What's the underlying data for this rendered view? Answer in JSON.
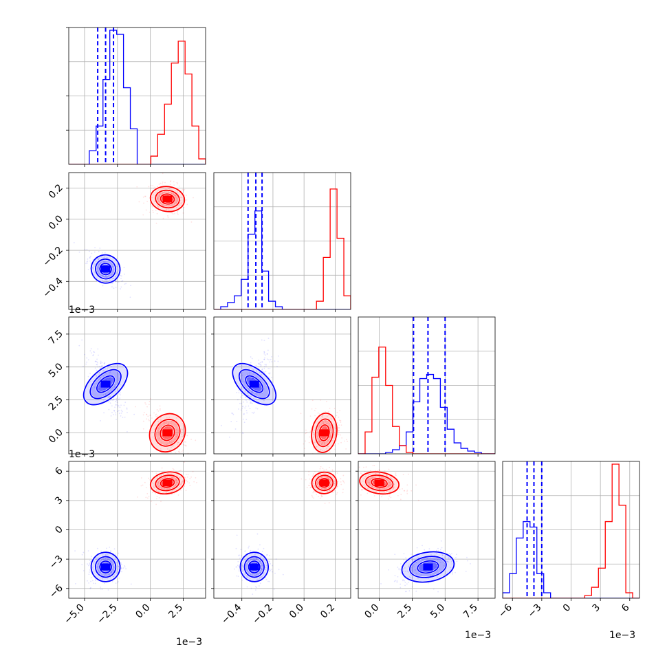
{
  "chart_data": {
    "type": "scatter",
    "subtype": "corner-plot",
    "title": "",
    "grid": true,
    "legend": "none",
    "series_colors": [
      "#0000ff",
      "#ff0000"
    ],
    "quantile_line_color": "#0000ff",
    "variables": [
      {
        "name": "",
        "ticks": [
          "−5.0",
          "−2.5",
          "0.0",
          "2.5"
        ],
        "tick_values": [
          -5.0,
          -2.5,
          0.0,
          2.5
        ],
        "range": [
          -6.2,
          4.2
        ],
        "scale_label": "1e−3"
      },
      {
        "name": "",
        "ticks": [
          "−0.4",
          "−0.2",
          "0.0",
          "0.2"
        ],
        "tick_values": [
          -0.4,
          -0.2,
          0.0,
          0.2
        ],
        "range": [
          -0.58,
          0.3
        ]
      },
      {
        "name": "",
        "ticks": [
          "0.0",
          "2.5",
          "5.0",
          "7.5"
        ],
        "tick_values": [
          0.0,
          2.5,
          5.0,
          7.5
        ],
        "range": [
          -1.6,
          8.8
        ],
        "scale_label": "1e−3"
      },
      {
        "name": "",
        "ticks": [
          "−6",
          "−3",
          "0",
          "3",
          "6"
        ],
        "tick_values": [
          -6,
          -3,
          0,
          3,
          6
        ],
        "range": [
          -7.0,
          7.0
        ],
        "scale_label": "1e−3"
      }
    ],
    "row_scale_labels": [
      "1e−3",
      "1e−3"
    ],
    "series": [
      {
        "name": "",
        "color": "#0000ff",
        "means": [
          -3.4,
          -0.32,
          3.7,
          -3.8
        ],
        "quantiles": [
          [
            -4.0,
            -3.4,
            -2.8
          ],
          [
            -0.36,
            -0.31,
            -0.27
          ],
          [
            2.6,
            3.7,
            5.0
          ],
          [
            -4.5,
            -3.8,
            -3.0
          ]
        ]
      },
      {
        "name": "",
        "color": "#ff0000",
        "means": [
          1.3,
          0.13,
          0.0,
          4.8
        ],
        "quantiles": []
      }
    ],
    "histograms": [
      {
        "blue": {
          "edges": [
            -6.2,
            -5.68,
            -5.16,
            -4.64,
            -4.12,
            -3.6,
            -3.08,
            -2.56,
            -2.04,
            -1.52,
            -1.0,
            -0.48,
            0.04,
            0.56,
            1.08,
            1.6,
            2.12,
            2.64,
            3.16,
            3.68,
            4.2
          ],
          "counts": [
            0,
            0,
            0,
            0.1,
            0.28,
            0.62,
            0.98,
            0.95,
            0.56,
            0.26,
            0,
            0,
            0,
            0,
            0,
            0,
            0,
            0,
            0,
            0
          ]
        },
        "red": {
          "edges": [
            -6.2,
            -5.68,
            -5.16,
            -4.64,
            -4.12,
            -3.6,
            -3.08,
            -2.56,
            -2.04,
            -1.52,
            -1.0,
            -0.48,
            0.04,
            0.56,
            1.08,
            1.6,
            2.12,
            2.64,
            3.16,
            3.68,
            4.2
          ],
          "counts": [
            0,
            0,
            0,
            0,
            0,
            0,
            0,
            0,
            0,
            0,
            0,
            0,
            0.06,
            0.22,
            0.44,
            0.74,
            0.9,
            0.66,
            0.28,
            0.04
          ]
        }
      },
      {
        "blue": {
          "edges": [
            -0.58,
            -0.536,
            -0.492,
            -0.448,
            -0.404,
            -0.36,
            -0.316,
            -0.272,
            -0.228,
            -0.184,
            -0.14,
            -0.096,
            -0.052,
            -0.008,
            0.036,
            0.08,
            0.124,
            0.168,
            0.212,
            0.256,
            0.3
          ],
          "counts": [
            0,
            0.02,
            0.05,
            0.1,
            0.22,
            0.55,
            0.72,
            0.28,
            0.06,
            0.02,
            0,
            0,
            0,
            0,
            0,
            0,
            0,
            0,
            0,
            0
          ]
        },
        "red": {
          "edges": [
            -0.58,
            -0.536,
            -0.492,
            -0.448,
            -0.404,
            -0.36,
            -0.316,
            -0.272,
            -0.228,
            -0.184,
            -0.14,
            -0.096,
            -0.052,
            -0.008,
            0.036,
            0.08,
            0.124,
            0.168,
            0.212,
            0.256,
            0.3
          ],
          "counts": [
            0,
            0,
            0,
            0,
            0,
            0,
            0,
            0,
            0,
            0,
            0,
            0,
            0,
            0,
            0,
            0.06,
            0.38,
            0.88,
            0.52,
            0.1
          ]
        }
      },
      {
        "blue": {
          "edges": [
            -1.6,
            -1.08,
            -0.56,
            -0.04,
            0.48,
            1.0,
            1.52,
            2.04,
            2.56,
            3.08,
            3.6,
            4.12,
            4.64,
            5.16,
            5.68,
            6.2,
            6.72,
            7.24,
            7.76,
            8.28,
            8.8
          ],
          "counts": [
            0,
            0,
            0,
            0,
            0.01,
            0.03,
            0.06,
            0.16,
            0.38,
            0.55,
            0.58,
            0.55,
            0.34,
            0.18,
            0.08,
            0.04,
            0.02,
            0.01,
            0,
            0
          ]
        },
        "red": {
          "edges": [
            -1.6,
            -1.08,
            -0.56,
            -0.04,
            0.48,
            1.0,
            1.52,
            2.04,
            2.56,
            3.08,
            3.6,
            4.12,
            4.64,
            5.16,
            5.68,
            6.2,
            6.72,
            7.24,
            7.76,
            8.28,
            8.8
          ],
          "counts": [
            0,
            0.16,
            0.56,
            0.78,
            0.5,
            0.2,
            0.06,
            0.01,
            0,
            0,
            0,
            0,
            0,
            0,
            0,
            0,
            0,
            0,
            0,
            0
          ]
        }
      },
      {
        "blue": {
          "edges": [
            -7.0,
            -6.3,
            -5.6,
            -4.9,
            -4.2,
            -3.5,
            -2.8,
            -2.1,
            -1.4,
            -0.7,
            0.0,
            0.7,
            1.4,
            2.1,
            2.8,
            3.5,
            4.2,
            4.9,
            5.6,
            6.3,
            7.0
          ],
          "counts": [
            0.04,
            0.18,
            0.44,
            0.56,
            0.52,
            0.18,
            0.04,
            0,
            0,
            0,
            0,
            0,
            0,
            0,
            0,
            0,
            0,
            0,
            0,
            0
          ]
        },
        "red": {
          "edges": [
            -7.0,
            -6.3,
            -5.6,
            -4.9,
            -4.2,
            -3.5,
            -2.8,
            -2.1,
            -1.4,
            -0.7,
            0.0,
            0.7,
            1.4,
            2.1,
            2.8,
            3.5,
            4.2,
            4.9,
            5.6,
            6.3,
            7.0
          ],
          "counts": [
            0,
            0,
            0,
            0,
            0,
            0,
            0,
            0,
            0,
            0,
            0,
            0,
            0.02,
            0.08,
            0.22,
            0.56,
            0.98,
            0.68,
            0.04,
            0
          ]
        }
      }
    ]
  }
}
